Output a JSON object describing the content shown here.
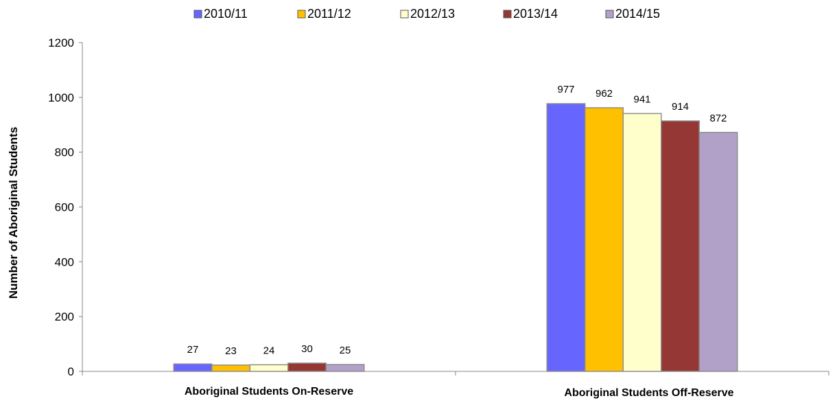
{
  "chart_data": {
    "type": "bar",
    "title": "",
    "xlabel": "",
    "ylabel": "Number of Aboriginal Students",
    "ylim": [
      0,
      1200
    ],
    "yticks": [
      0,
      200,
      400,
      600,
      800,
      1000,
      1200
    ],
    "grid": false,
    "legend_position": "top",
    "categories": [
      "Aboriginal Students On-Reserve",
      "Aboriginal Students Off-Reserve"
    ],
    "series": [
      {
        "name": "2010/11",
        "color": "#6666ff",
        "values": [
          27,
          977
        ]
      },
      {
        "name": "2011/12",
        "color": "#ffc000",
        "values": [
          23,
          962
        ]
      },
      {
        "name": "2012/13",
        "color": "#ffffcc",
        "values": [
          24,
          941
        ]
      },
      {
        "name": "2013/14",
        "color": "#953735",
        "values": [
          30,
          914
        ]
      },
      {
        "name": "2014/15",
        "color": "#b1a0c7",
        "values": [
          25,
          872
        ]
      }
    ]
  }
}
